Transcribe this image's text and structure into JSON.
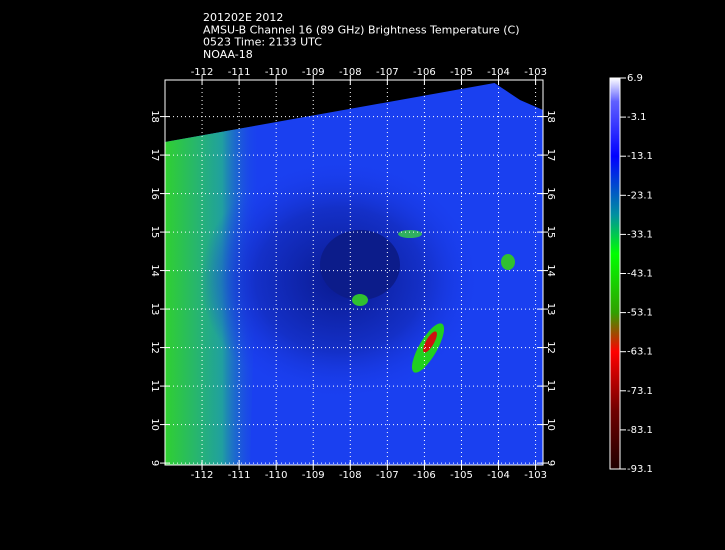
{
  "header": {
    "lines": [
      "201202E 2012",
      "AMSU-B Channel 16 (89 GHz) Brightness Temperature (C)",
      "0523 Time: 2133 UTC",
      "NOAA-18"
    ]
  },
  "map": {
    "xlim": [
      -113.0,
      -102.8
    ],
    "ylim": [
      8.95,
      18.95
    ],
    "xticks": [
      -112,
      -111,
      -110,
      -109,
      -108,
      -107,
      -106,
      -105,
      -104,
      -103
    ],
    "yticks": [
      9,
      10,
      11,
      12,
      13,
      14,
      15,
      16,
      17,
      18
    ]
  },
  "colorbar": {
    "lim": [
      -93.1,
      6.9
    ],
    "ticks": [
      6.9,
      -3.1,
      -13.1,
      -23.1,
      -33.1,
      -43.1,
      -53.1,
      -63.1,
      -73.1,
      -83.1,
      -93.1
    ]
  }
}
